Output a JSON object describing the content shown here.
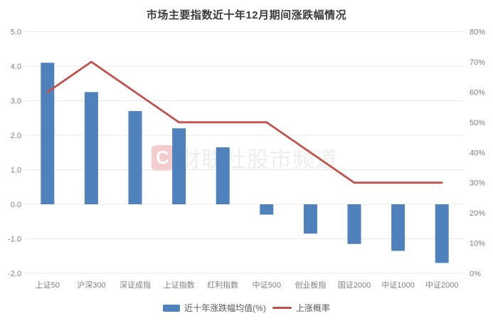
{
  "title": "市场主要指数近十年12月期间涨跌幅情况",
  "watermark": {
    "badge": "C",
    "text": "财联社股市频道"
  },
  "legend": {
    "items": [
      {
        "type": "bar",
        "label": "近十年涨跌幅均值(%)"
      },
      {
        "type": "line",
        "label": "上涨概率"
      }
    ]
  },
  "colors": {
    "bar": "#4f81bd",
    "line": "#c3514c",
    "grid": "#e9e9e9",
    "axis_text": "#7f7f7f",
    "title_text": "#3b3b3b",
    "legend_text": "#595959"
  },
  "chart_data": {
    "type": "bar",
    "subtype": "bar+line dual-axis",
    "title": "市场主要指数近十年12月期间涨跌幅情况",
    "categories": [
      "上证50",
      "沪深300",
      "深证成指",
      "上证指数",
      "红利指数",
      "中证500",
      "创业板指",
      "国证2000",
      "中证1000",
      "中证2000"
    ],
    "series": [
      {
        "name": "近十年涨跌幅均值(%)",
        "type": "bar",
        "axis": "left",
        "values": [
          4.1,
          3.25,
          2.7,
          2.2,
          1.65,
          -0.3,
          -0.85,
          -1.15,
          -1.35,
          -1.7
        ]
      },
      {
        "name": "上涨概率",
        "type": "line",
        "axis": "right",
        "unit": "%",
        "values": [
          60,
          70,
          60,
          50,
          50,
          50,
          40,
          30,
          30,
          30
        ]
      }
    ],
    "left_axis": {
      "min": -2,
      "max": 5,
      "tick_labels": [
        "5.0",
        "4.0",
        "3.0",
        "2.0",
        "1.0",
        "0.0",
        "-1.0",
        "-2.0"
      ]
    },
    "right_axis": {
      "min": 0,
      "max": 80,
      "tick_labels": [
        "80%",
        "70%",
        "60%",
        "50%",
        "40%",
        "30%",
        "20%",
        "10%",
        "0%"
      ]
    },
    "grid": true,
    "legend_position": "bottom"
  }
}
